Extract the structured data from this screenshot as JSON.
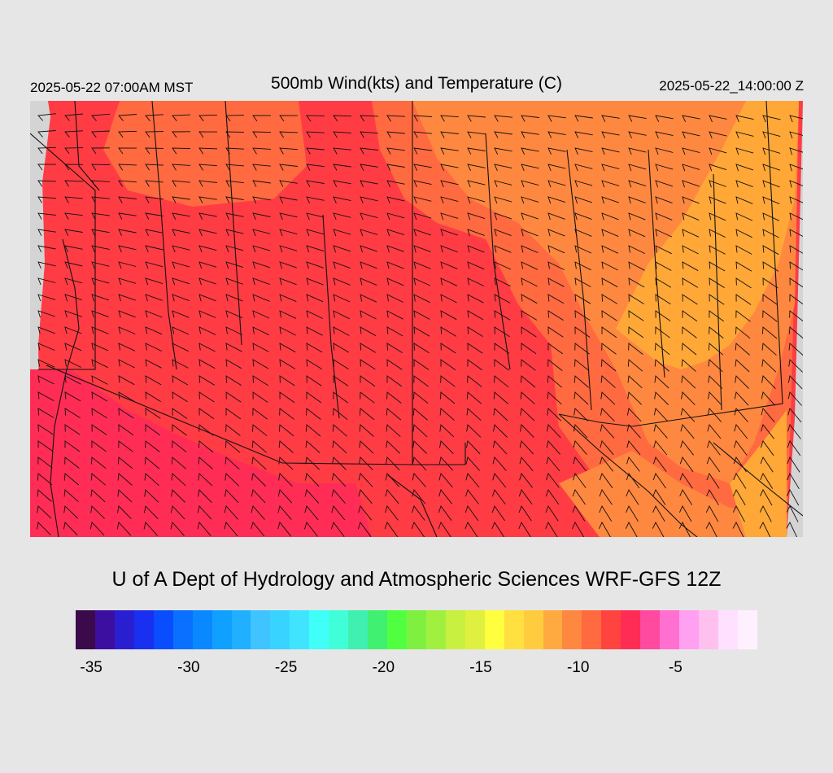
{
  "header": {
    "valid_time": "2025-05-22 07:00AM MST",
    "title": "500mb Wind(kts) and Temperature (C)",
    "init_time": "2025-05-22_14:00:00 Z"
  },
  "credit": "U of A Dept of Hydrology and Atmospheric Sciences WRF-GFS 12Z",
  "colorbar": {
    "colors": [
      "#3a0a4a",
      "#3d0fa0",
      "#2a1fd0",
      "#1a30f0",
      "#0a4dff",
      "#0a70ff",
      "#0a88ff",
      "#10a0ff",
      "#20b0ff",
      "#40c4ff",
      "#38d4ff",
      "#40e4ff",
      "#40fff8",
      "#40ffd8",
      "#40f0b0",
      "#40f070",
      "#50ff40",
      "#80f040",
      "#a0f040",
      "#c8f040",
      "#e0f040",
      "#ffff40",
      "#ffe040",
      "#ffcc40",
      "#ffaa40",
      "#ff8840",
      "#ff6a40",
      "#ff4440",
      "#ff2d55",
      "#ff4aa0",
      "#ff70d0",
      "#ffa0f0",
      "#ffc0f0",
      "#ffe0ff",
      "#fff0ff"
    ],
    "tick_labels": [
      "-35",
      "-30",
      "-25",
      "-20",
      "-15",
      "-10",
      "-5"
    ]
  },
  "fill_colors": {
    "coldest": "#ff2d55",
    "cold": "#ff3c44",
    "mid": "#ff6a40",
    "warm": "#ff8840",
    "warmest": "#ffa838",
    "no_data": "#d4d4d4"
  }
}
